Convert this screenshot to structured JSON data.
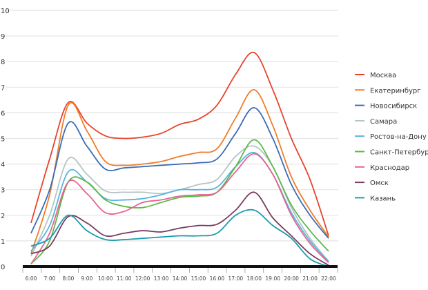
{
  "chart_data": {
    "type": "line",
    "title": "",
    "xlabel": "",
    "ylabel": "",
    "ylim": [
      0,
      10
    ],
    "yticks": [
      "0",
      "1",
      "2",
      "3",
      "4",
      "5",
      "6",
      "7",
      "8",
      "9",
      "10"
    ],
    "categories": [
      "6:00",
      "7:00",
      "8:00",
      "9:00",
      "10:00",
      "11:00",
      "12:00",
      "13:00",
      "14:00",
      "15:00",
      "16:00",
      "17:00",
      "18:00",
      "19:00",
      "20:00",
      "21:00",
      "22:00"
    ],
    "grid": true,
    "legend_position": "right",
    "series": [
      {
        "name": "Москва",
        "color": "#e8432c",
        "values": [
          1.7,
          4.2,
          6.4,
          5.6,
          5.1,
          5.0,
          5.05,
          5.2,
          5.55,
          5.75,
          6.3,
          7.5,
          8.35,
          6.9,
          5.0,
          3.4,
          1.2
        ]
      },
      {
        "name": "Екатеринбург",
        "color": "#f07d28",
        "values": [
          0.5,
          2.8,
          6.3,
          5.3,
          4.1,
          3.95,
          4.0,
          4.1,
          4.3,
          4.45,
          4.6,
          5.8,
          6.9,
          5.5,
          3.5,
          2.2,
          1.15
        ]
      },
      {
        "name": "Новосибирск",
        "color": "#3a6db5",
        "values": [
          1.3,
          3.0,
          5.6,
          4.7,
          3.8,
          3.85,
          3.9,
          3.95,
          4.0,
          4.05,
          4.2,
          5.2,
          6.2,
          5.0,
          3.2,
          2.0,
          1.1
        ]
      },
      {
        "name": "Самара",
        "color": "#b5c4c4",
        "values": [
          0.4,
          2.0,
          4.2,
          3.6,
          2.95,
          2.9,
          2.9,
          2.85,
          3.0,
          3.2,
          3.4,
          4.3,
          4.7,
          3.9,
          2.3,
          1.1,
          0.2
        ]
      },
      {
        "name": "Ростов-на-Дону",
        "color": "#55b5de",
        "values": [
          0.6,
          1.6,
          3.7,
          3.3,
          2.65,
          2.6,
          2.65,
          2.8,
          3.0,
          3.0,
          3.1,
          3.9,
          4.45,
          3.6,
          2.1,
          1.0,
          0.2
        ]
      },
      {
        "name": "Санкт-Петербург",
        "color": "#5cb84a",
        "values": [
          0.1,
          1.0,
          3.3,
          3.3,
          2.6,
          2.35,
          2.3,
          2.5,
          2.7,
          2.75,
          2.9,
          3.9,
          4.95,
          3.9,
          2.4,
          1.4,
          0.6
        ]
      },
      {
        "name": "Краснодар",
        "color": "#e8638f",
        "values": [
          0.1,
          1.3,
          3.3,
          2.85,
          2.1,
          2.15,
          2.5,
          2.6,
          2.75,
          2.8,
          2.9,
          3.7,
          4.4,
          3.6,
          2.0,
          0.9,
          0.15
        ]
      },
      {
        "name": "Омск",
        "color": "#7a3a5e",
        "values": [
          0.5,
          0.8,
          1.95,
          1.7,
          1.2,
          1.3,
          1.4,
          1.35,
          1.5,
          1.6,
          1.65,
          2.2,
          2.9,
          1.9,
          1.2,
          0.5,
          0.05
        ]
      },
      {
        "name": "Казань",
        "color": "#1a9bb0",
        "values": [
          0.8,
          1.1,
          2.0,
          1.4,
          1.05,
          1.05,
          1.1,
          1.15,
          1.2,
          1.2,
          1.3,
          2.0,
          2.2,
          1.6,
          1.1,
          0.3,
          0.0
        ]
      }
    ]
  }
}
